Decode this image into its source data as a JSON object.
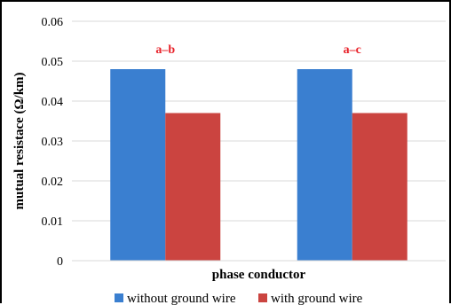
{
  "chart_data": {
    "type": "bar",
    "categories": [
      "a–b",
      "a–c"
    ],
    "series": [
      {
        "name": "without ground wire",
        "values": [
          0.048,
          0.048
        ],
        "color": "#3a7fd0"
      },
      {
        "name": "with ground wire",
        "values": [
          0.037,
          0.037
        ],
        "color": "#cb4440"
      }
    ],
    "category_annotations": [
      "a–b",
      "a–c"
    ],
    "annotation_color": "#e8222a",
    "xlabel": "phase conductor",
    "ylabel": "mutual resistace (Ω/km)",
    "ylim": [
      0,
      0.06
    ],
    "yticks": [
      "0",
      "0.01",
      "0.02",
      "0.03",
      "0.04",
      "0.05",
      "0.06"
    ],
    "grid": true,
    "legend_position": "bottom"
  }
}
